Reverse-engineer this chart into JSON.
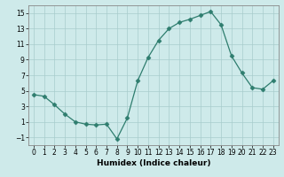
{
  "x": [
    0,
    1,
    2,
    3,
    4,
    5,
    6,
    7,
    8,
    9,
    10,
    11,
    12,
    13,
    14,
    15,
    16,
    17,
    18,
    19,
    20,
    21,
    22,
    23
  ],
  "y": [
    4.5,
    4.3,
    3.2,
    2.0,
    1.0,
    0.7,
    0.6,
    0.7,
    -1.2,
    1.5,
    6.3,
    9.3,
    11.5,
    13.0,
    13.8,
    14.2,
    14.7,
    15.2,
    13.5,
    9.5,
    7.3,
    5.4,
    5.2,
    6.3
  ],
  "line_color": "#2e7d6e",
  "marker": "D",
  "marker_size": 2.5,
  "bg_color": "#ceeaea",
  "grid_color": "#a8cccc",
  "xlabel": "Humidex (Indice chaleur)",
  "xlim": [
    -0.5,
    23.5
  ],
  "ylim": [
    -2,
    16
  ],
  "yticks": [
    -1,
    1,
    3,
    5,
    7,
    9,
    11,
    13,
    15
  ],
  "xticks": [
    0,
    1,
    2,
    3,
    4,
    5,
    6,
    7,
    8,
    9,
    10,
    11,
    12,
    13,
    14,
    15,
    16,
    17,
    18,
    19,
    20,
    21,
    22,
    23
  ],
  "xlabel_fontsize": 6.5,
  "tick_fontsize": 5.5
}
